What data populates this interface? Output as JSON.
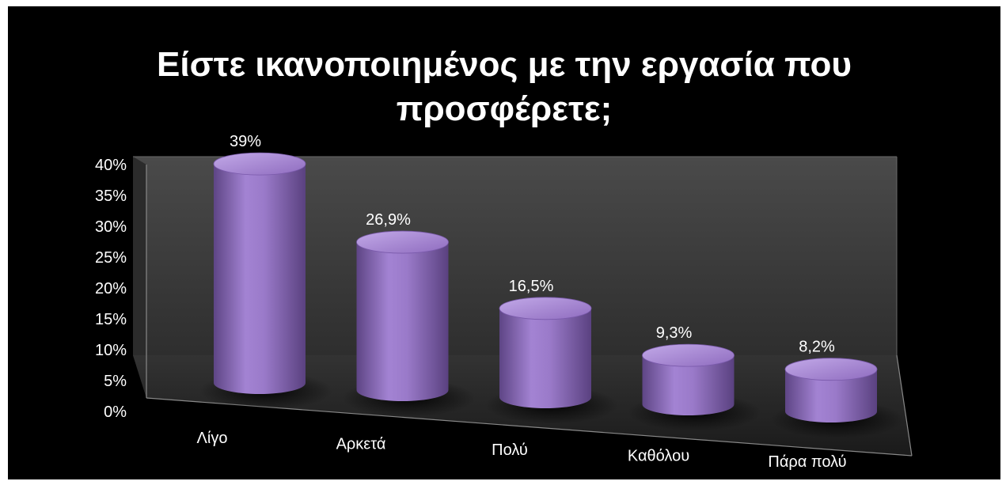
{
  "chart_data": {
    "type": "bar",
    "title": "Είστε ικανοποιημένος με την εργασία που προσφέρετε;",
    "title_lines": [
      "Είστε ικανοποιημένος με την εργασία που",
      "προσφέρετε;"
    ],
    "categories": [
      "Λίγο",
      "Αρκετά",
      "Πολύ",
      "Καθόλου",
      "Πάρα πολύ"
    ],
    "values": [
      39,
      26.9,
      16.5,
      9.3,
      8.2
    ],
    "data_labels": [
      "39%",
      "26,9%",
      "16,5%",
      "9,3%",
      "8,2%"
    ],
    "y_ticks": [
      "0%",
      "5%",
      "10%",
      "15%",
      "20%",
      "25%",
      "30%",
      "35%",
      "40%"
    ],
    "ylim": [
      0,
      40
    ],
    "grid": false,
    "legend": "none",
    "bar_shape": "cylinder",
    "colors": {
      "background": "#000000",
      "bar": "#8e6bbd",
      "bar_highlight": "#b89ee0",
      "bar_shadow": "#5e4585",
      "wall": "#3c3c3c",
      "floor": "#262626",
      "text": "#ffffff"
    }
  }
}
